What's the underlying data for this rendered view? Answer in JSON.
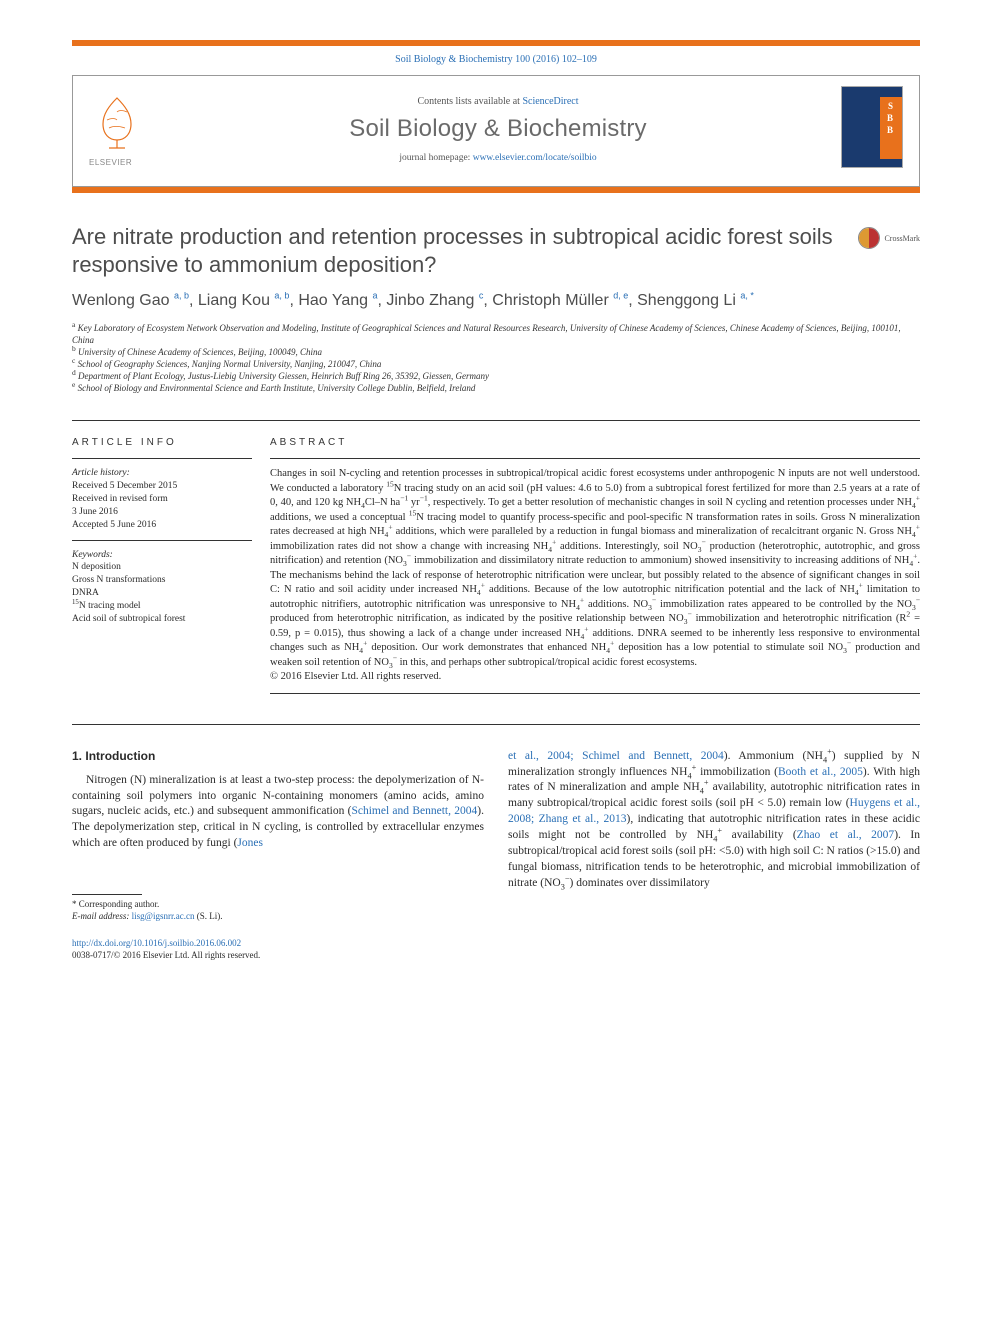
{
  "meta": {
    "citation": "Soil Biology & Biochemistry 100 (2016) 102–109",
    "contents_prefix": "Contents lists available at ",
    "contents_link": "ScienceDirect",
    "journal_name": "Soil Biology & Biochemistry",
    "homepage_prefix": "journal homepage: ",
    "homepage_url": "www.elsevier.com/locate/soilbio",
    "publisher_logo_label": "ELSEVIER",
    "crossmark_label": "CrossMark"
  },
  "colors": {
    "accent": "#e8711c",
    "link": "#2a6fb5",
    "heading_gray": "#4d4d4d",
    "cover_bg": "#1a3a6e"
  },
  "title": "Are nitrate production and retention processes in subtropical acidic forest soils responsive to ammonium deposition?",
  "authors_html": "Wenlong Gao <sup>a, b</sup>, Liang Kou <sup>a, b</sup>, Hao Yang <sup>a</sup>, Jinbo Zhang <sup>c</sup>, Christoph Müller <sup>d, e</sup>, Shenggong Li <sup>a, <span class='star'>*</span></sup>",
  "affiliations": [
    "a Key Laboratory of Ecosystem Network Observation and Modeling, Institute of Geographical Sciences and Natural Resources Research, University of Chinese Academy of Sciences, Chinese Academy of Sciences, Beijing, 100101, China",
    "b University of Chinese Academy of Sciences, Beijing, 100049, China",
    "c School of Geography Sciences, Nanjing Normal University, Nanjing, 210047, China",
    "d Department of Plant Ecology, Justus-Liebig University Giessen, Heinrich Buff Ring 26, 35392, Giessen, Germany",
    "e School of Biology and Environmental Science and Earth Institute, University College Dublin, Belfield, Ireland"
  ],
  "article_info": {
    "heading": "ARTICLE INFO",
    "history_label": "Article history:",
    "history": [
      "Received 5 December 2015",
      "Received in revised form",
      "3 June 2016",
      "Accepted 5 June 2016"
    ],
    "keywords_label": "Keywords:",
    "keywords": [
      "N deposition",
      "Gross N transformations",
      "DNRA",
      "15N tracing model",
      "Acid soil of subtropical forest"
    ]
  },
  "abstract": {
    "heading": "ABSTRACT",
    "text_html": "Changes in soil N-cycling and retention processes in subtropical/tropical acidic forest ecosystems under anthropogenic N inputs are not well understood. We conducted a laboratory <sup>15</sup>N tracing study on an acid soil (pH values: 4.6 to 5.0) from a subtropical forest fertilized for more than 2.5 years at a rate of 0, 40, and 120 kg NH<sub>4</sub>Cl–N ha<sup>−1</sup> yr<sup>−1</sup>, respectively. To get a better resolution of mechanistic changes in soil N cycling and retention processes under NH<sub>4</sub><sup>+</sup> additions, we used a conceptual <sup>15</sup>N tracing model to quantify process-specific and pool-specific N transformation rates in soils. Gross N mineralization rates decreased at high NH<sub>4</sub><sup>+</sup> additions, which were paralleled by a reduction in fungal biomass and mineralization of recalcitrant organic N. Gross NH<sub>4</sub><sup>+</sup> immobilization rates did not show a change with increasing NH<sub>4</sub><sup>+</sup> additions. Interestingly, soil NO<sub>3</sub><sup>−</sup> production (heterotrophic, autotrophic, and gross nitrification) and retention (NO<sub>3</sub><sup>−</sup> immobilization and dissimilatory nitrate reduction to ammonium) showed insensitivity to increasing additions of NH<sub>4</sub><sup>+</sup>. The mechanisms behind the lack of response of heterotrophic nitrification were unclear, but possibly related to the absence of significant changes in soil C: N ratio and soil acidity under increased NH<sub>4</sub><sup>+</sup> additions. Because of the low autotrophic nitrification potential and the lack of NH<sub>4</sub><sup>+</sup> limitation to autotrophic nitrifiers, autotrophic nitrification was unresponsive to NH<sub>4</sub><sup>+</sup> additions. NO<sub>3</sub><sup>−</sup> immobilization rates appeared to be controlled by the NO<sub>3</sub><sup>−</sup> produced from heterotrophic nitrification, as indicated by the positive relationship between NO<sub>3</sub><sup>−</sup> immobilization and heterotrophic nitrification (R<sup>2</sup> = 0.59, p = 0.015), thus showing a lack of a change under increased NH<sub>4</sub><sup>+</sup> additions. DNRA seemed to be inherently less responsive to environmental changes such as NH<sub>4</sub><sup>+</sup> deposition. Our work demonstrates that enhanced NH<sub>4</sub><sup>+</sup> deposition has a low potential to stimulate soil NO<sub>3</sub><sup>−</sup> production and weaken soil retention of NO<sub>3</sub><sup>−</sup> in this, and perhaps other subtropical/tropical acidic forest ecosystems.",
    "copyright": "© 2016 Elsevier Ltd. All rights reserved."
  },
  "body": {
    "section_number": "1.",
    "section_title": "Introduction",
    "p1_html": "Nitrogen (N) mineralization is at least a two-step process: the depolymerization of N-containing soil polymers into organic N-containing monomers (amino acids, amino sugars, nucleic acids, etc.) and subsequent ammonification (<span class='link'>Schimel and Bennett, 2004</span>). The depolymerization step, critical in N cycling, is controlled by extracellular enzymes which are often produced by fungi (<span class='link'>Jones</span>",
    "p2_html": "<span class='link'>et al., 2004; Schimel and Bennett, 2004</span>). Ammonium (NH<sub>4</sub><sup>+</sup>) supplied by N mineralization strongly influences NH<sub>4</sub><sup>+</sup> immobilization (<span class='link'>Booth et al., 2005</span>). With high rates of N mineralization and ample NH<sub>4</sub><sup>+</sup> availability, autotrophic nitrification rates in many subtropical/tropical acidic forest soils (soil pH &lt; 5.0) remain low (<span class='link'>Huygens et al., 2008; Zhang et al., 2013</span>), indicating that autotrophic nitrification rates in these acidic soils might not be controlled by NH<sub>4</sub><sup>+</sup> availability (<span class='link'>Zhao et al., 2007</span>). In subtropical/tropical acid forest soils (soil pH: &lt;5.0) with high soil C: N ratios (&gt;15.0) and fungal biomass, nitrification tends to be heterotrophic, and microbial immobilization of nitrate (NO<sub>3</sub><sup>−</sup>) dominates over dissimilatory"
  },
  "footnote": {
    "corr_label": "* Corresponding author.",
    "email_label": "E-mail address:",
    "email": "lisg@igsnrr.ac.cn",
    "email_suffix": "(S. Li)."
  },
  "doi": {
    "url": "http://dx.doi.org/10.1016/j.soilbio.2016.06.002",
    "issn_line": "0038-0717/© 2016 Elsevier Ltd. All rights reserved."
  }
}
